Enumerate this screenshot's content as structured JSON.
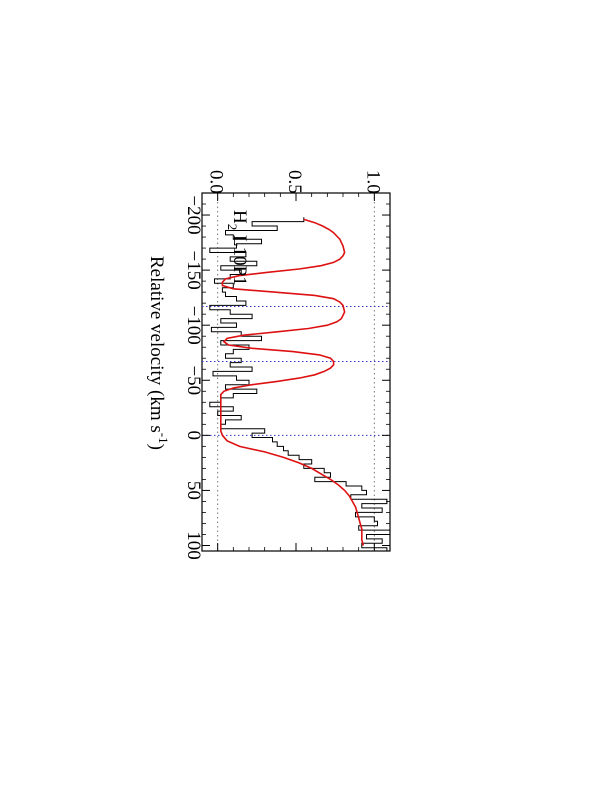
{
  "chart_data": {
    "type": "line",
    "orientation": "rotated-90-clockwise",
    "annotation": {
      "species": "H",
      "subscript": "2",
      "transition": " L10P1"
    },
    "xlabel_main": "Relative velocity (km s",
    "xlabel_sup": "-1",
    "xlabel_close": ")",
    "xlim": [
      -220,
      105
    ],
    "ylim": [
      -0.1,
      1.1
    ],
    "x_ticks": [
      {
        "value": -200,
        "label": "−200"
      },
      {
        "value": -150,
        "label": "−150"
      },
      {
        "value": -100,
        "label": "−100"
      },
      {
        "value": -50,
        "label": "−50"
      },
      {
        "value": 0,
        "label": "0"
      },
      {
        "value": 50,
        "label": "50"
      },
      {
        "value": 100,
        "label": "100"
      }
    ],
    "y_ticks": [
      {
        "value": 0.0,
        "label": "0.0"
      },
      {
        "value": 0.5,
        "label": "0.5"
      },
      {
        "value": 1.0,
        "label": "1.0"
      }
    ],
    "reference_lines": {
      "continuum": 1.0,
      "zero": 0.0,
      "component_velocities": [
        -117,
        -67,
        0
      ]
    },
    "colors": {
      "axes": "#000000",
      "data": "#000000",
      "model": "#dd1111",
      "reference": "#3333cc",
      "continuum": "#777777"
    },
    "series": [
      {
        "style": "histogram",
        "x": [
          -196,
          -192,
          -188,
          -184,
          -180,
          -176,
          -172,
          -168,
          -164,
          -160,
          -156,
          -152,
          -148,
          -144,
          -140,
          -136,
          -132,
          -128,
          -124,
          -120,
          -116,
          -112,
          -108,
          -104,
          -100,
          -96,
          -92,
          -88,
          -84,
          -80,
          -76,
          -72,
          -68,
          -64,
          -60,
          -56,
          -52,
          -48,
          -44,
          -40,
          -36,
          -32,
          -28,
          -24,
          -20,
          -16,
          -12,
          -8,
          -4,
          0,
          4,
          8,
          12,
          16,
          20,
          24,
          28,
          32,
          36,
          40,
          44,
          48,
          52,
          56,
          60,
          64,
          68,
          72,
          76,
          80,
          84,
          88,
          92,
          96,
          100,
          104
        ],
        "y": [
          0.55,
          0.22,
          0.38,
          0.05,
          0.1,
          0.28,
          0.12,
          -0.05,
          0.18,
          0.08,
          0.25,
          0.02,
          0.15,
          0.08,
          -0.02,
          0.1,
          0.03,
          0.05,
          0.12,
          0.18,
          -0.05,
          0.08,
          0.22,
          0.02,
          0.12,
          -0.04,
          0.15,
          0.28,
          0.02,
          0.2,
          0.1,
          0.05,
          0.15,
          0.08,
          0.22,
          -0.03,
          0.12,
          0.2,
          0.05,
          0.25,
          0.1,
          0.02,
          -0.05,
          0.1,
          0.0,
          0.15,
          0.05,
          0.02,
          0.3,
          0.22,
          0.35,
          0.38,
          0.42,
          0.45,
          0.52,
          0.6,
          0.55,
          0.68,
          0.72,
          0.62,
          0.82,
          0.92,
          0.95,
          0.85,
          1.08,
          0.92,
          1.05,
          0.88,
          1.0,
          1.02,
          0.9,
          1.1,
          0.95,
          1.05,
          0.92,
          1.08
        ]
      },
      {
        "style": "line",
        "x": [
          -196,
          -193,
          -190,
          -187,
          -184,
          -181,
          -178,
          -175,
          -172,
          -169,
          -166,
          -163,
          -160,
          -157,
          -154,
          -151,
          -148,
          -145,
          -142,
          -139,
          -136,
          -133,
          -130,
          -127,
          -124,
          -121,
          -118,
          -115,
          -112,
          -109,
          -106,
          -103,
          -100,
          -97,
          -94,
          -91,
          -88,
          -85,
          -82,
          -79,
          -76,
          -73,
          -70,
          -67,
          -64,
          -61,
          -58,
          -55,
          -52,
          -49,
          -46,
          -43,
          -40,
          -37,
          -34,
          -31,
          -28,
          -25,
          -22,
          -19,
          -16,
          -13,
          -10,
          -7,
          -4,
          0,
          5,
          10,
          15,
          20,
          25,
          30,
          35,
          40,
          45,
          50,
          55,
          60,
          65,
          70,
          75,
          80,
          85,
          90,
          95,
          100
        ],
        "y": [
          0.55,
          0.62,
          0.67,
          0.71,
          0.74,
          0.76,
          0.78,
          0.79,
          0.8,
          0.805,
          0.81,
          0.8,
          0.78,
          0.74,
          0.66,
          0.52,
          0.32,
          0.14,
          0.05,
          0.03,
          0.03,
          0.1,
          0.36,
          0.62,
          0.74,
          0.78,
          0.8,
          0.805,
          0.81,
          0.8,
          0.79,
          0.76,
          0.7,
          0.58,
          0.38,
          0.17,
          0.06,
          0.04,
          0.07,
          0.22,
          0.48,
          0.65,
          0.72,
          0.74,
          0.74,
          0.72,
          0.68,
          0.62,
          0.52,
          0.38,
          0.22,
          0.1,
          0.04,
          0.02,
          0.02,
          0.02,
          0.02,
          0.02,
          0.02,
          0.02,
          0.02,
          0.02,
          0.02,
          0.02,
          0.02,
          0.03,
          0.06,
          0.14,
          0.3,
          0.42,
          0.52,
          0.6,
          0.66,
          0.72,
          0.77,
          0.81,
          0.84,
          0.86,
          0.88,
          0.89,
          0.9,
          0.91,
          0.92,
          0.92,
          0.92,
          0.93
        ]
      }
    ]
  }
}
